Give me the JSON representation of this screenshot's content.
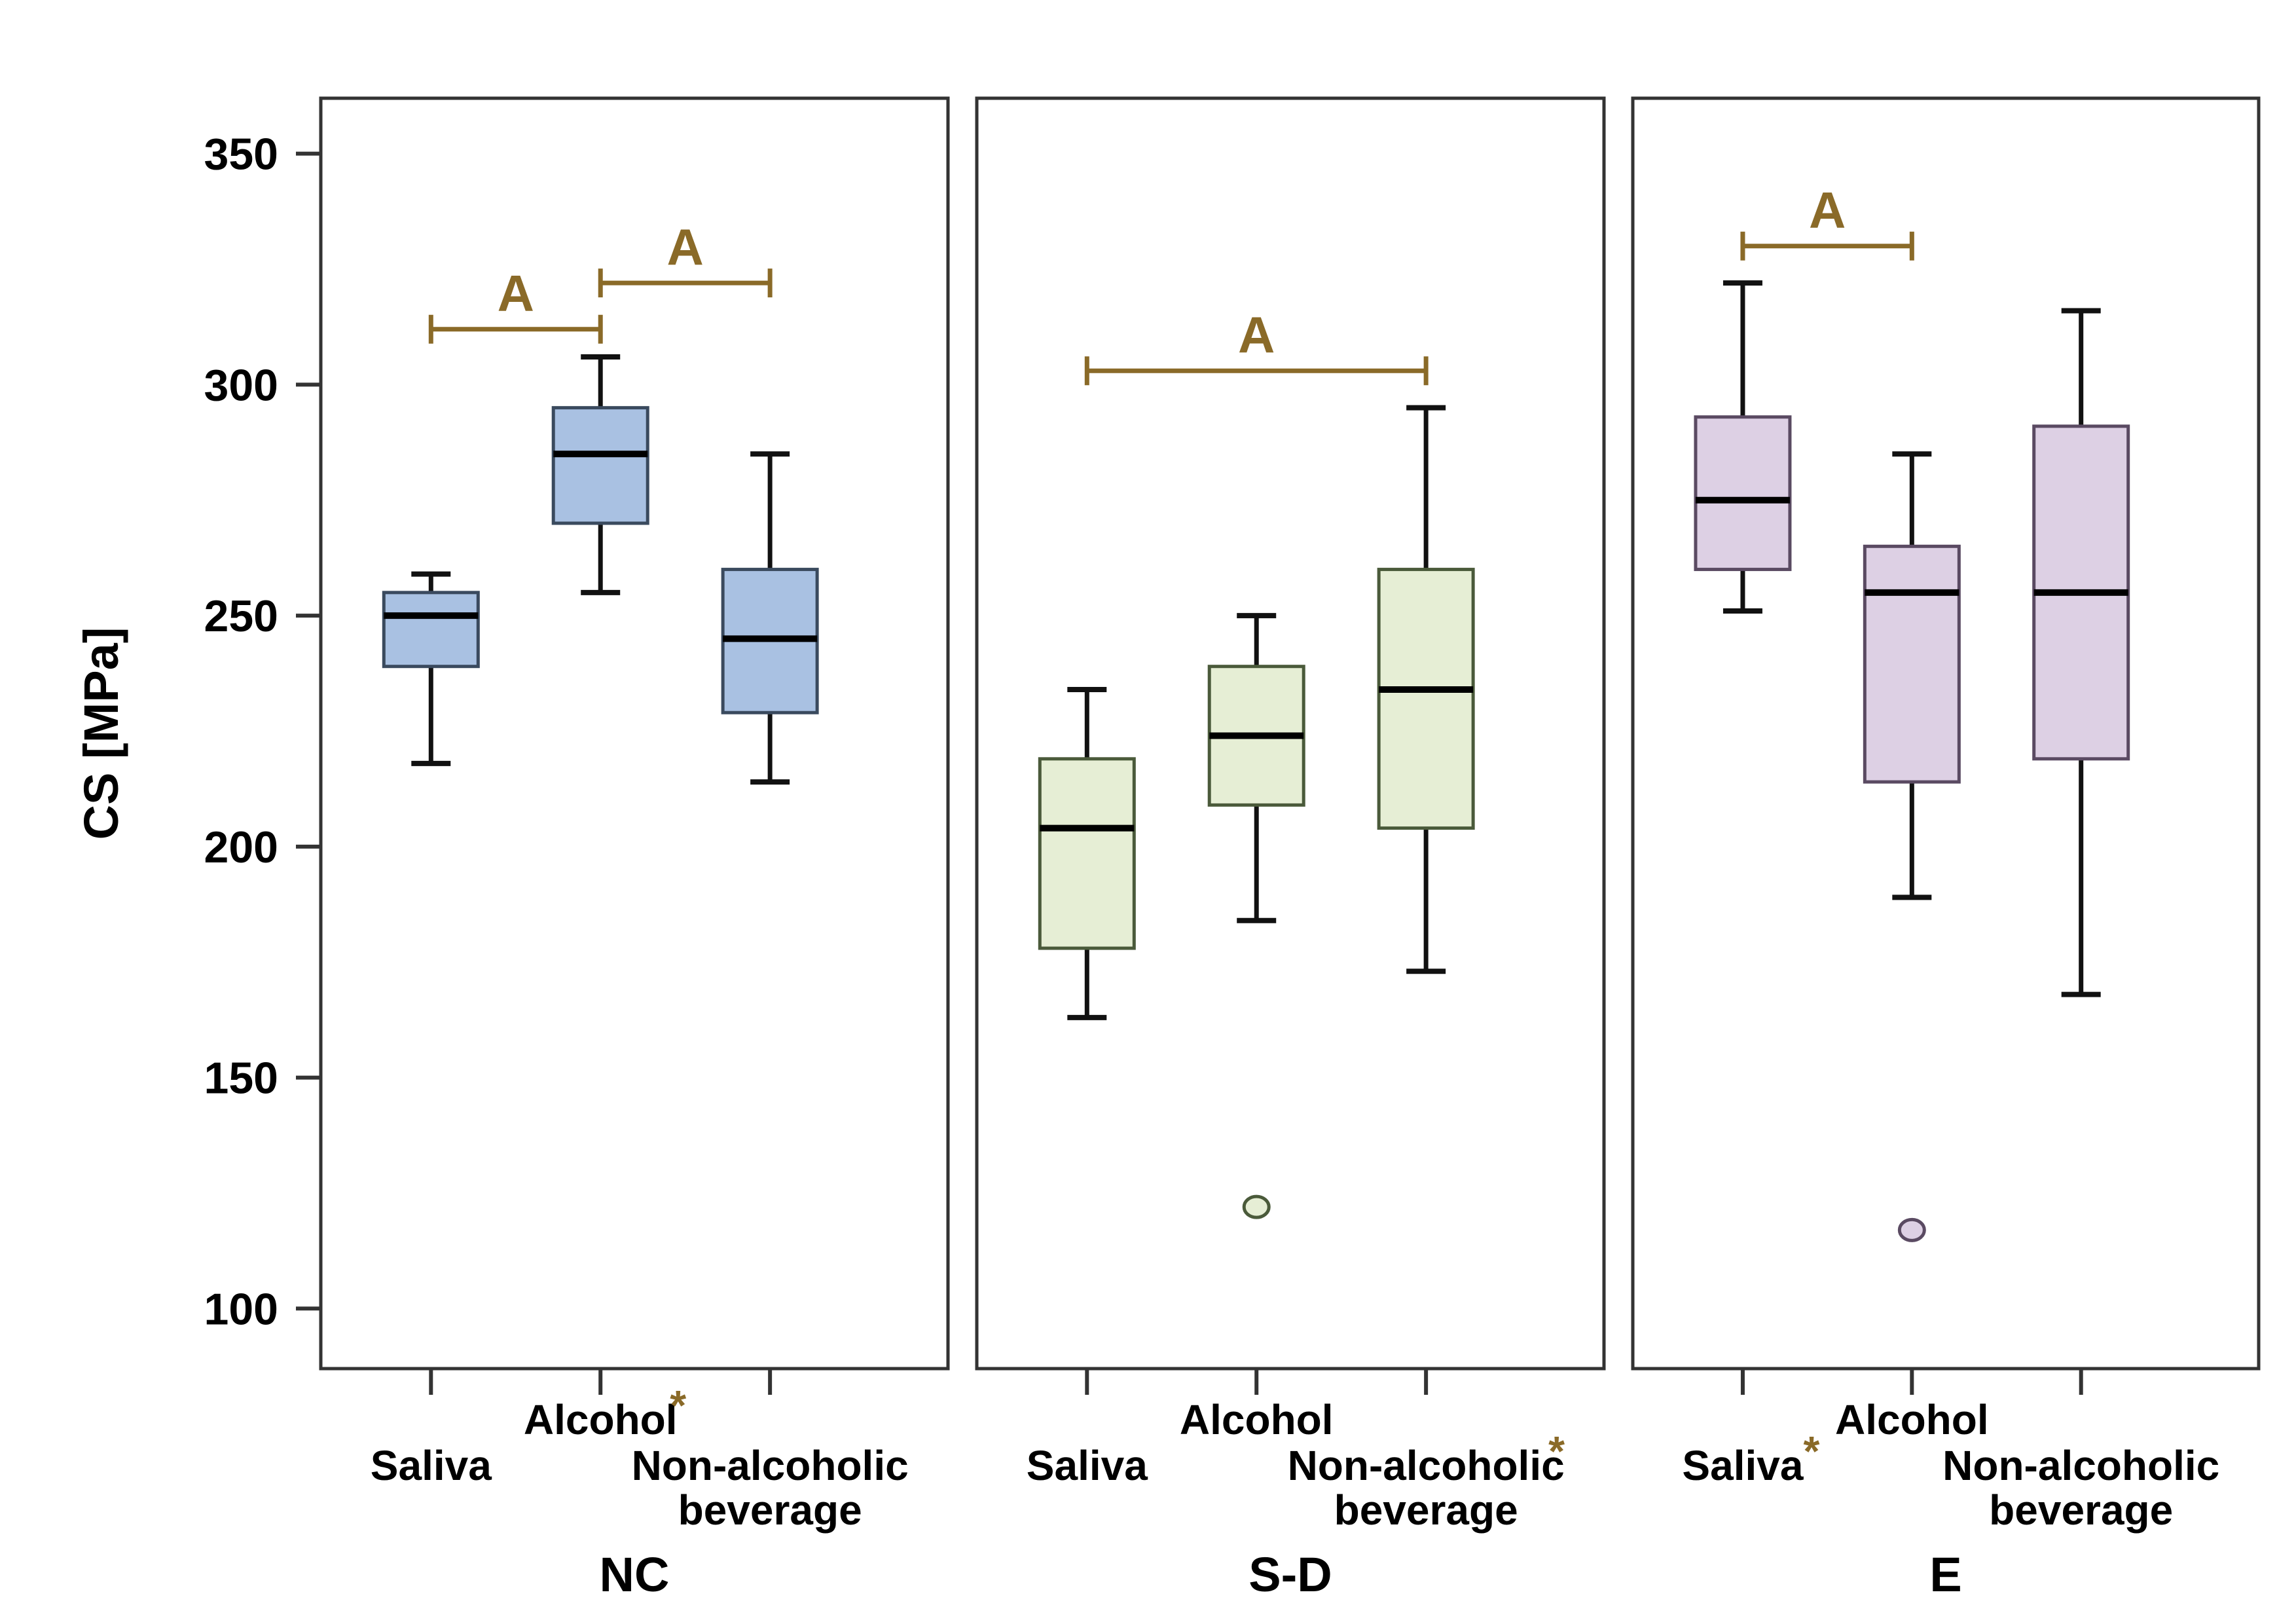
{
  "chart_data": {
    "type": "boxplot",
    "ylabel": "CS [MPa]",
    "ylim": [
      87,
      362
    ],
    "yticks": [
      100,
      150,
      200,
      250,
      300,
      350
    ],
    "grid": false,
    "colors": {
      "NC": {
        "fill": "#a9c1e2",
        "stroke": "#3a4a5e"
      },
      "S-D": {
        "fill": "#e6eed5",
        "stroke": "#4a5a3a"
      },
      "E": {
        "fill": "#ddd0e4",
        "stroke": "#5a4a62"
      },
      "annotation": "#8a6a28"
    },
    "groups": [
      {
        "name": "NC",
        "categories": [
          {
            "label": [
              "Saliva"
            ],
            "asterisk": false,
            "whisker_low": 218,
            "q1": 239,
            "median": 250,
            "q3": 255,
            "whisker_high": 259,
            "outliers": []
          },
          {
            "label": [
              "Alcohol"
            ],
            "asterisk": true,
            "whisker_low": 255,
            "q1": 270,
            "median": 285,
            "q3": 295,
            "whisker_high": 306,
            "outliers": []
          },
          {
            "label": [
              "Non-alcoholic",
              "beverage"
            ],
            "asterisk": false,
            "whisker_low": 214,
            "q1": 229,
            "median": 245,
            "q3": 260,
            "whisker_high": 285,
            "outliers": []
          }
        ],
        "significance": [
          {
            "from": 0,
            "to": 1,
            "y": 312,
            "label": "A"
          },
          {
            "from": 1,
            "to": 2,
            "y": 322,
            "label": "A"
          }
        ]
      },
      {
        "name": "S-D",
        "categories": [
          {
            "label": [
              "Saliva"
            ],
            "asterisk": false,
            "whisker_low": 163,
            "q1": 178,
            "median": 204,
            "q3": 219,
            "whisker_high": 234,
            "outliers": []
          },
          {
            "label": [
              "Alcohol"
            ],
            "asterisk": false,
            "whisker_low": 184,
            "q1": 209,
            "median": 224,
            "q3": 239,
            "whisker_high": 250,
            "outliers": [
              122
            ]
          },
          {
            "label": [
              "Non-alcoholic",
              "beverage"
            ],
            "asterisk": true,
            "whisker_low": 173,
            "q1": 204,
            "median": 234,
            "q3": 260,
            "whisker_high": 295,
            "outliers": []
          }
        ],
        "significance": [
          {
            "from": 0,
            "to": 2,
            "y": 303,
            "label": "A"
          }
        ]
      },
      {
        "name": "E",
        "categories": [
          {
            "label": [
              "Saliva"
            ],
            "asterisk": true,
            "whisker_low": 251,
            "q1": 260,
            "median": 275,
            "q3": 293,
            "whisker_high": 322,
            "outliers": []
          },
          {
            "label": [
              "Alcohol"
            ],
            "asterisk": false,
            "whisker_low": 189,
            "q1": 214,
            "median": 255,
            "q3": 265,
            "whisker_high": 285,
            "outliers": [
              117
            ]
          },
          {
            "label": [
              "Non-alcoholic",
              "beverage"
            ],
            "asterisk": false,
            "whisker_low": 168,
            "q1": 219,
            "median": 255,
            "q3": 291,
            "whisker_high": 316,
            "outliers": []
          }
        ],
        "significance": [
          {
            "from": 0,
            "to": 1,
            "y": 330,
            "label": "A"
          }
        ]
      }
    ]
  }
}
